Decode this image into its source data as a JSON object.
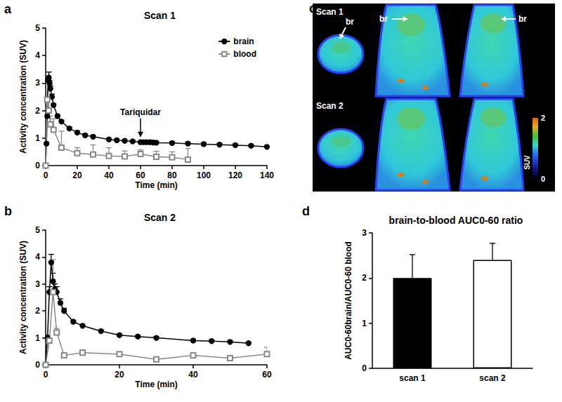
{
  "chart_data": [
    {
      "panel_label": "a",
      "type": "line",
      "title": "Scan 1",
      "x_label": "Time (min)",
      "y_label": "Activity concentration (SUV)",
      "xlim": [
        0,
        140
      ],
      "xticks": [
        0,
        20,
        40,
        60,
        80,
        100,
        120,
        140
      ],
      "ylim": [
        0,
        5
      ],
      "yticks": [
        0,
        1,
        2,
        3,
        4,
        5
      ],
      "grid": false,
      "legend": "upper right",
      "annotations": [
        {
          "text": "Tariquidar",
          "x": 60,
          "y": 1.0
        }
      ],
      "series": [
        {
          "name": "brain",
          "color": "#000000",
          "marker": "circle",
          "x": [
            0,
            0.5,
            1,
            1.5,
            2,
            2.5,
            3,
            4,
            5,
            7.5,
            10,
            15,
            20,
            25,
            30,
            40,
            45,
            50,
            55,
            60,
            62,
            64,
            66,
            68,
            70,
            80,
            90,
            100,
            110,
            120,
            130,
            140
          ],
          "values": [
            0,
            0.8,
            1.8,
            3.1,
            3.2,
            3.0,
            2.8,
            2.5,
            2.2,
            1.8,
            1.6,
            1.35,
            1.2,
            1.1,
            1.05,
            0.95,
            0.92,
            0.9,
            0.88,
            0.85,
            0.85,
            0.85,
            0.85,
            0.84,
            0.83,
            0.82,
            0.8,
            0.78,
            0.76,
            0.74,
            0.72,
            0.68
          ],
          "errors": [
            0,
            0.05,
            0.1,
            0.15,
            0.2,
            0.1,
            0.1,
            0.1,
            0.05,
            0.05,
            0.05,
            0.05,
            0.05,
            0.05,
            0.05,
            0.05,
            0.05,
            0.05,
            0.05,
            0.05,
            0.05,
            0.05,
            0.05,
            0.05,
            0.05,
            0.05,
            0.05,
            0.05,
            0.05,
            0.05,
            0.05,
            0.05
          ]
        },
        {
          "name": "blood",
          "color": "#888888",
          "marker": "square_open",
          "x": [
            0,
            1,
            2,
            3,
            5,
            10,
            20,
            30,
            40,
            50,
            60,
            70,
            80,
            90
          ],
          "values": [
            0,
            2.4,
            2.0,
            1.5,
            1.3,
            0.65,
            0.45,
            0.4,
            0.35,
            0.33,
            0.42,
            0.32,
            0.3,
            0.22
          ],
          "errors": [
            0,
            0.3,
            0.5,
            0.3,
            0.4,
            0.6,
            0.2,
            0.35,
            0.3,
            0.2,
            0.15,
            0.2,
            0.2,
            0.4
          ]
        }
      ]
    },
    {
      "panel_label": "b",
      "type": "line",
      "title": "Scan 2",
      "x_label": "Time (min)",
      "y_label": "Activity concentration (SUV)",
      "xlim": [
        0,
        60
      ],
      "xticks": [
        0,
        20,
        40,
        60
      ],
      "ylim": [
        0,
        5
      ],
      "yticks": [
        0,
        1,
        2,
        3,
        4,
        5
      ],
      "grid": false,
      "series": [
        {
          "name": "brain",
          "color": "#000000",
          "marker": "circle",
          "x": [
            0,
            0.5,
            1,
            1.5,
            2,
            2.5,
            3,
            4,
            5,
            7.5,
            10,
            15,
            20,
            25,
            30,
            40,
            45,
            50,
            55
          ],
          "values": [
            0,
            1.0,
            2.7,
            3.8,
            3.1,
            2.8,
            2.7,
            2.3,
            2.0,
            1.6,
            1.45,
            1.25,
            1.1,
            1.05,
            1.0,
            0.9,
            0.88,
            0.85,
            0.8
          ],
          "errors": [
            0,
            0.1,
            0.2,
            0.3,
            0.3,
            0.2,
            0.2,
            0.15,
            0.1,
            0.05,
            0.05,
            0.05,
            0.05,
            0.05,
            0.05,
            0.05,
            0.05,
            0.05,
            0.05
          ]
        },
        {
          "name": "blood",
          "color": "#888888",
          "marker": "square_open",
          "x": [
            0,
            1,
            2,
            3,
            5,
            10,
            20,
            30,
            40,
            50,
            60
          ],
          "values": [
            0,
            0.9,
            2.7,
            1.2,
            0.35,
            0.45,
            0.4,
            0.2,
            0.35,
            0.25,
            0.4
          ],
          "errors": [
            0,
            0.1,
            1.2,
            0.15,
            0.05,
            0.1,
            0.05,
            0.1,
            0.1,
            0.1,
            0.25
          ]
        }
      ]
    },
    {
      "panel_label": "d",
      "type": "bar",
      "title": "brain-to-blood AUC0-60 ratio",
      "y_label": "AUC0-60brain/AUC0-60 blood",
      "categories": [
        "scan 1",
        "scan 2"
      ],
      "values": [
        2.0,
        2.4
      ],
      "errors": [
        0.52,
        0.37
      ],
      "colors": [
        "#000000",
        "#ffffff"
      ],
      "ylim": [
        0,
        3
      ],
      "yticks": [
        0,
        1,
        2,
        3
      ],
      "grid": false
    }
  ],
  "image_panel": {
    "panel_label": "c",
    "type": "image",
    "rows": [
      {
        "label": "Scan 1",
        "annotations": [
          "br",
          "br",
          "br"
        ]
      },
      {
        "label": "Scan 2",
        "annotations": []
      }
    ],
    "colorbar": {
      "label": "SUV",
      "range": [
        0,
        2
      ],
      "ticks": [
        0,
        2
      ]
    }
  }
}
